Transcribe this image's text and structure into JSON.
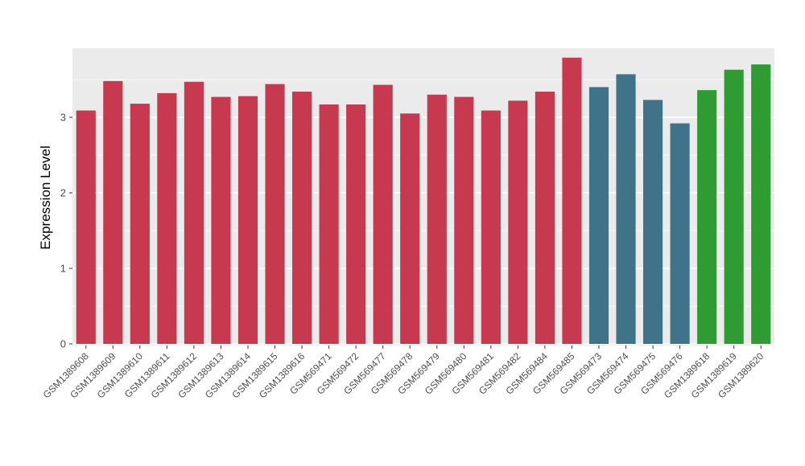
{
  "chart_data": {
    "type": "bar",
    "title": "",
    "xlabel": "",
    "ylabel": "Expression Level",
    "ylim": [
      0,
      3.9
    ],
    "y_ticks": [
      0,
      1,
      2,
      3
    ],
    "y_minor_ticks": [
      0.5,
      1.5,
      2.5,
      3.5
    ],
    "grid": "on",
    "legend": "none",
    "panel_background": "#EBEBEB",
    "gridline_color": "#FFFFFF",
    "axis_text_color": "#4D4D4D",
    "axis_title_color": "#000000",
    "group_colors": {
      "crimson": "#C6394F",
      "teal": "#3E7389",
      "green": "#2E9B33"
    },
    "bars": [
      {
        "label": "GSM1389608",
        "value": 3.09,
        "group": "crimson"
      },
      {
        "label": "GSM1389609",
        "value": 3.48,
        "group": "crimson"
      },
      {
        "label": "GSM1389610",
        "value": 3.18,
        "group": "crimson"
      },
      {
        "label": "GSM1389611",
        "value": 3.32,
        "group": "crimson"
      },
      {
        "label": "GSM1389612",
        "value": 3.47,
        "group": "crimson"
      },
      {
        "label": "GSM1389613",
        "value": 3.27,
        "group": "crimson"
      },
      {
        "label": "GSM1389614",
        "value": 3.28,
        "group": "crimson"
      },
      {
        "label": "GSM1389615",
        "value": 3.44,
        "group": "crimson"
      },
      {
        "label": "GSM1389616",
        "value": 3.34,
        "group": "crimson"
      },
      {
        "label": "GSM569471",
        "value": 3.17,
        "group": "crimson"
      },
      {
        "label": "GSM569472",
        "value": 3.17,
        "group": "crimson"
      },
      {
        "label": "GSM569477",
        "value": 3.43,
        "group": "crimson"
      },
      {
        "label": "GSM569478",
        "value": 3.05,
        "group": "crimson"
      },
      {
        "label": "GSM569479",
        "value": 3.3,
        "group": "crimson"
      },
      {
        "label": "GSM569480",
        "value": 3.27,
        "group": "crimson"
      },
      {
        "label": "GSM569481",
        "value": 3.09,
        "group": "crimson"
      },
      {
        "label": "GSM569482",
        "value": 3.22,
        "group": "crimson"
      },
      {
        "label": "GSM569484",
        "value": 3.34,
        "group": "crimson"
      },
      {
        "label": "GSM569485",
        "value": 3.79,
        "group": "crimson"
      },
      {
        "label": "GSM569473",
        "value": 3.4,
        "group": "teal"
      },
      {
        "label": "GSM569474",
        "value": 3.57,
        "group": "teal"
      },
      {
        "label": "GSM569475",
        "value": 3.23,
        "group": "teal"
      },
      {
        "label": "GSM569476",
        "value": 2.92,
        "group": "teal"
      },
      {
        "label": "GSM1389618",
        "value": 3.36,
        "group": "green"
      },
      {
        "label": "GSM1389619",
        "value": 3.63,
        "group": "green"
      },
      {
        "label": "GSM1389620",
        "value": 3.7,
        "group": "green"
      }
    ]
  }
}
